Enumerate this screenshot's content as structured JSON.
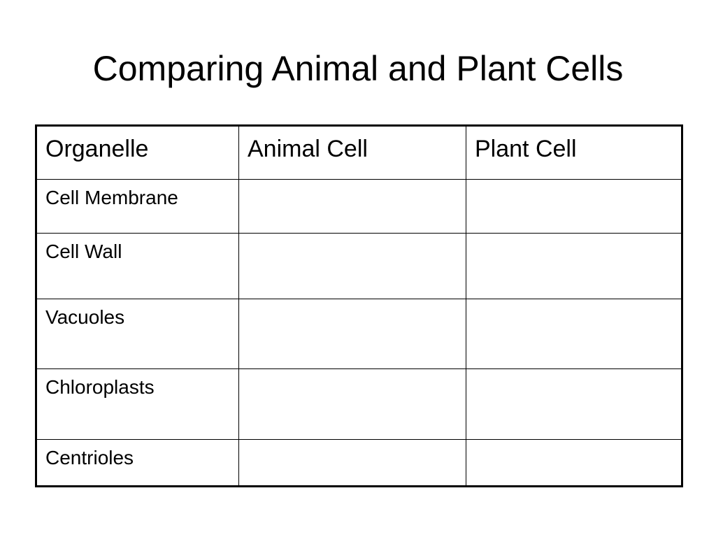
{
  "slide": {
    "title": "Comparing Animal and Plant Cells"
  },
  "table": {
    "headers": [
      "Organelle",
      "Animal Cell",
      "Plant Cell"
    ],
    "rows": [
      [
        "Cell Membrane",
        "",
        ""
      ],
      [
        "Cell Wall",
        "",
        ""
      ],
      [
        "Vacuoles",
        "",
        ""
      ],
      [
        "Chloroplasts",
        "",
        ""
      ],
      [
        "Centrioles",
        "",
        ""
      ]
    ]
  }
}
